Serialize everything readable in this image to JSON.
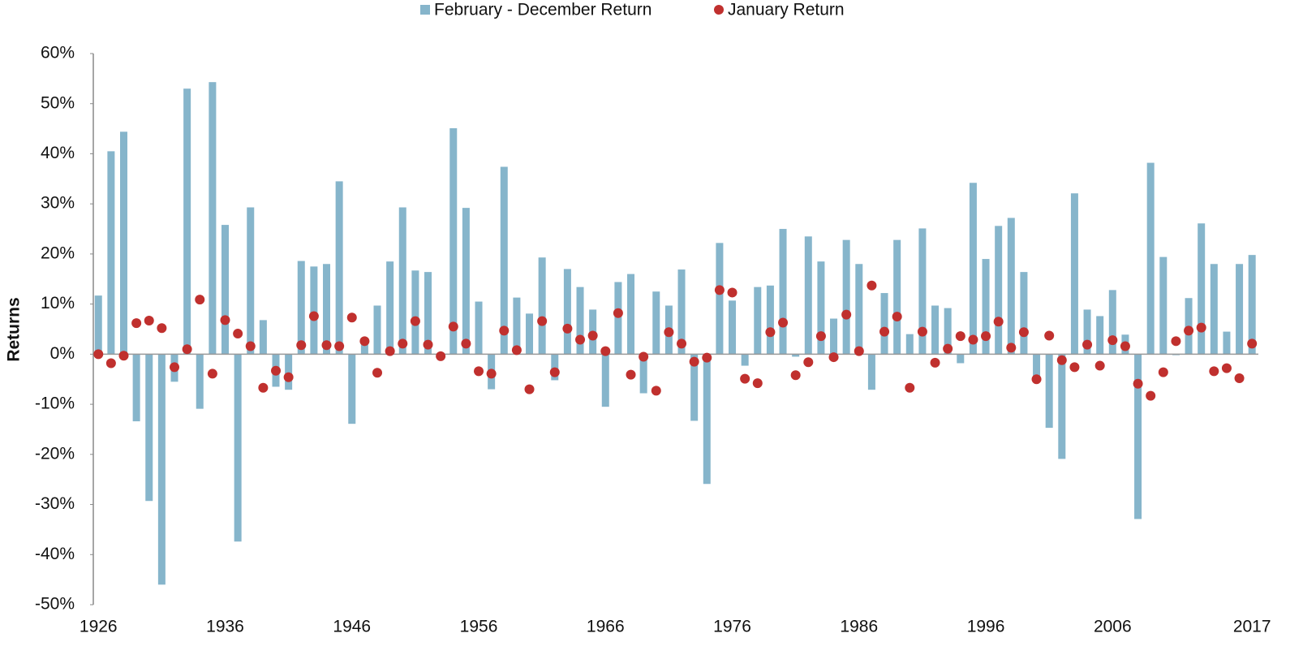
{
  "chart_data": {
    "type": "bar_dot",
    "y_label": "Returns",
    "x": [
      1926,
      1927,
      1928,
      1929,
      1930,
      1931,
      1932,
      1933,
      1934,
      1935,
      1936,
      1937,
      1938,
      1939,
      1940,
      1941,
      1942,
      1943,
      1944,
      1945,
      1946,
      1947,
      1948,
      1949,
      1950,
      1951,
      1952,
      1953,
      1954,
      1955,
      1956,
      1957,
      1958,
      1959,
      1960,
      1961,
      1962,
      1963,
      1964,
      1965,
      1966,
      1967,
      1968,
      1969,
      1970,
      1971,
      1972,
      1973,
      1974,
      1975,
      1976,
      1977,
      1978,
      1979,
      1980,
      1981,
      1982,
      1983,
      1984,
      1985,
      1986,
      1987,
      1988,
      1989,
      1990,
      1991,
      1992,
      1993,
      1994,
      1995,
      1996,
      1997,
      1998,
      1999,
      2000,
      2001,
      2002,
      2003,
      2004,
      2005,
      2006,
      2007,
      2008,
      2009,
      2010,
      2011,
      2012,
      2013,
      2014,
      2015,
      2016,
      2017
    ],
    "series": [
      {
        "name": "February - December Return",
        "color": "#86b5cb",
        "mark": "bar",
        "values": [
          11.7,
          40.5,
          44.4,
          -13.4,
          -29.3,
          -46.0,
          -5.5,
          53.0,
          -10.9,
          54.3,
          25.8,
          -37.4,
          29.3,
          6.8,
          -6.5,
          -7.1,
          18.6,
          17.5,
          18.0,
          34.5,
          -13.9,
          2.1,
          9.7,
          18.5,
          29.3,
          16.7,
          16.4,
          -1.0,
          45.1,
          29.2,
          10.5,
          -7.0,
          37.4,
          11.3,
          8.1,
          19.3,
          -5.2,
          17.0,
          13.4,
          8.9,
          -10.5,
          14.4,
          16.0,
          -7.8,
          12.5,
          9.7,
          16.9,
          -13.3,
          -25.9,
          22.2,
          10.7,
          -2.3,
          13.4,
          13.7,
          25.0,
          -0.5,
          23.5,
          18.5,
          7.1,
          22.8,
          18.0,
          -7.1,
          12.2,
          22.8,
          4.0,
          25.1,
          9.7,
          9.2,
          -1.8,
          34.2,
          19.0,
          25.6,
          27.2,
          16.4,
          -4.6,
          -14.7,
          -20.9,
          32.1,
          8.9,
          7.6,
          12.8,
          3.9,
          -32.9,
          38.2,
          19.4,
          -0.2,
          11.2,
          26.1,
          18.0,
          4.5,
          18.0,
          19.8
        ]
      },
      {
        "name": "January Return",
        "color": "#c0302e",
        "mark": "dot",
        "values": [
          0.0,
          -1.8,
          -0.3,
          6.2,
          6.7,
          5.2,
          -2.6,
          1.0,
          10.9,
          -3.9,
          6.8,
          4.1,
          1.6,
          -6.7,
          -3.3,
          -4.6,
          1.8,
          7.6,
          1.8,
          1.6,
          7.3,
          2.6,
          -3.7,
          0.6,
          2.1,
          6.6,
          1.9,
          -0.4,
          5.5,
          2.1,
          -3.4,
          -3.9,
          4.7,
          0.8,
          -7.0,
          6.6,
          -3.6,
          5.1,
          2.9,
          3.7,
          0.6,
          8.2,
          -4.1,
          -0.5,
          -7.3,
          4.4,
          2.1,
          -1.5,
          -0.7,
          12.8,
          12.3,
          -4.9,
          -5.8,
          4.4,
          6.3,
          -4.2,
          -1.6,
          3.6,
          -0.6,
          7.9,
          0.6,
          13.7,
          4.5,
          7.5,
          -6.7,
          4.5,
          -1.7,
          1.1,
          3.6,
          2.9,
          3.6,
          6.5,
          1.3,
          4.4,
          -5.0,
          3.7,
          -1.2,
          -2.6,
          1.9,
          -2.3,
          2.8,
          1.6,
          -5.9,
          -8.3,
          -3.6,
          2.6,
          4.7,
          5.3,
          -3.4,
          -2.8,
          -4.8,
          2.1
        ]
      }
    ],
    "xlim": [
      1925.6,
      2017.5
    ],
    "xticks": [
      1926,
      1936,
      1946,
      1956,
      1966,
      1976,
      1986,
      1996,
      2006,
      2017
    ],
    "ylim": [
      -50,
      60
    ],
    "yticks": [
      {
        "value": -50,
        "label": "-50%"
      },
      {
        "value": -40,
        "label": "-40%"
      },
      {
        "value": -30,
        "label": "-30%"
      },
      {
        "value": -20,
        "label": "-20%"
      },
      {
        "value": -10,
        "label": "-10%"
      },
      {
        "value": 0,
        "label": "0%"
      },
      {
        "value": 10,
        "label": "10%"
      },
      {
        "value": 20,
        "label": "20%"
      },
      {
        "value": 30,
        "label": "30%"
      },
      {
        "value": 40,
        "label": "40%"
      },
      {
        "value": 50,
        "label": "50%"
      },
      {
        "value": 60,
        "label": "60%"
      }
    ],
    "legend": "top"
  }
}
